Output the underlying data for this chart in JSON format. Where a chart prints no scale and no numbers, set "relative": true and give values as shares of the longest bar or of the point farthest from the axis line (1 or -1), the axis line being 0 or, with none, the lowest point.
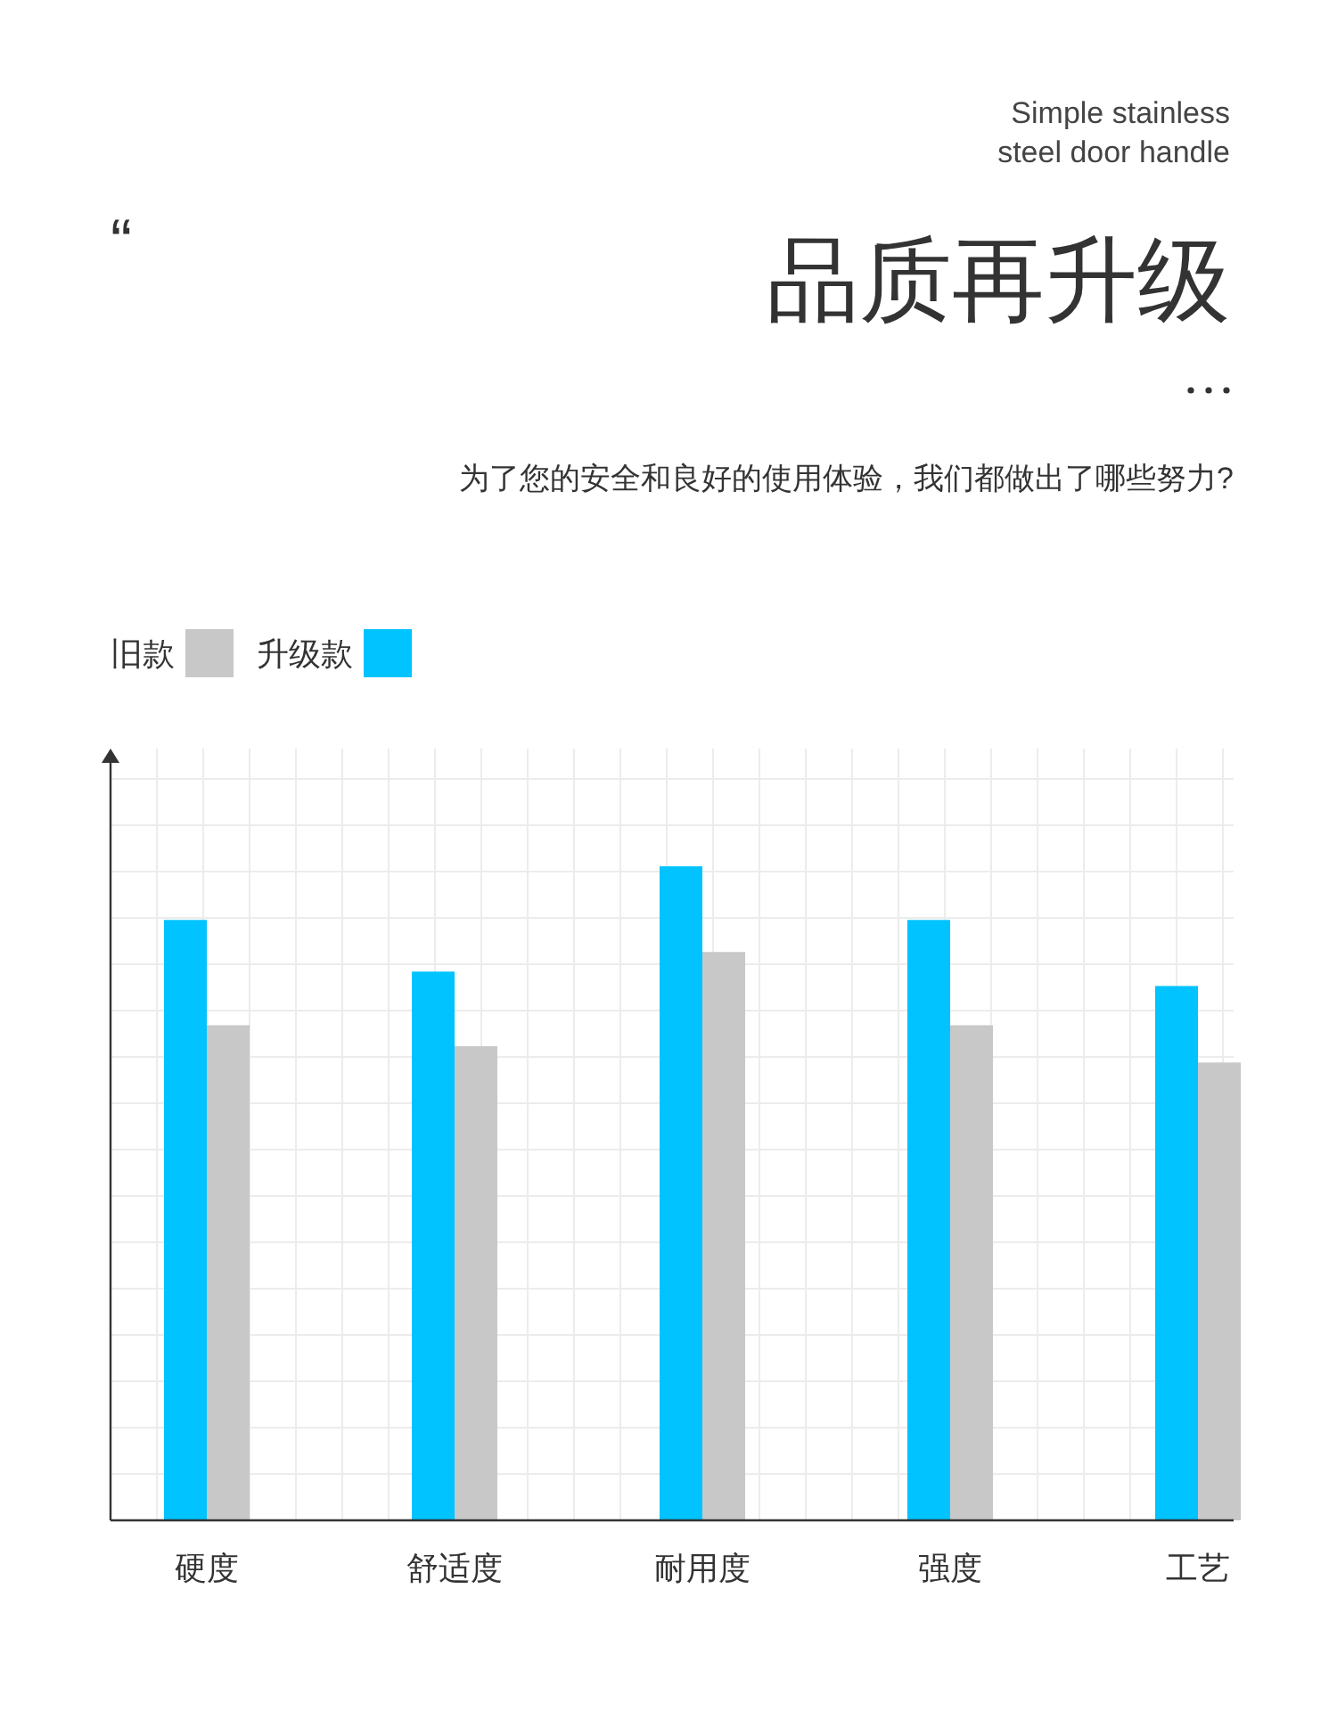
{
  "chart_data": {
    "type": "bar",
    "title": "品质再升级",
    "subtitle": "为了您的安全和良好的使用体验，我们都做出了哪些努力?",
    "annotations": [
      "Simple stainless steel door handle",
      "“"
    ],
    "categories": [
      "硬度",
      "舒适度",
      "耐用度",
      "强度",
      "工艺"
    ],
    "relative": true,
    "grid": true,
    "legend": "top left",
    "series": [
      {
        "name": "升级款",
        "color": "#00c3ff",
        "values": [
          0.918,
          0.839,
          1.0,
          0.918,
          0.817
        ]
      },
      {
        "name": "旧款",
        "color": "#c8c8c8",
        "values": [
          0.757,
          0.725,
          0.869,
          0.757,
          0.7
        ]
      }
    ]
  }
}
